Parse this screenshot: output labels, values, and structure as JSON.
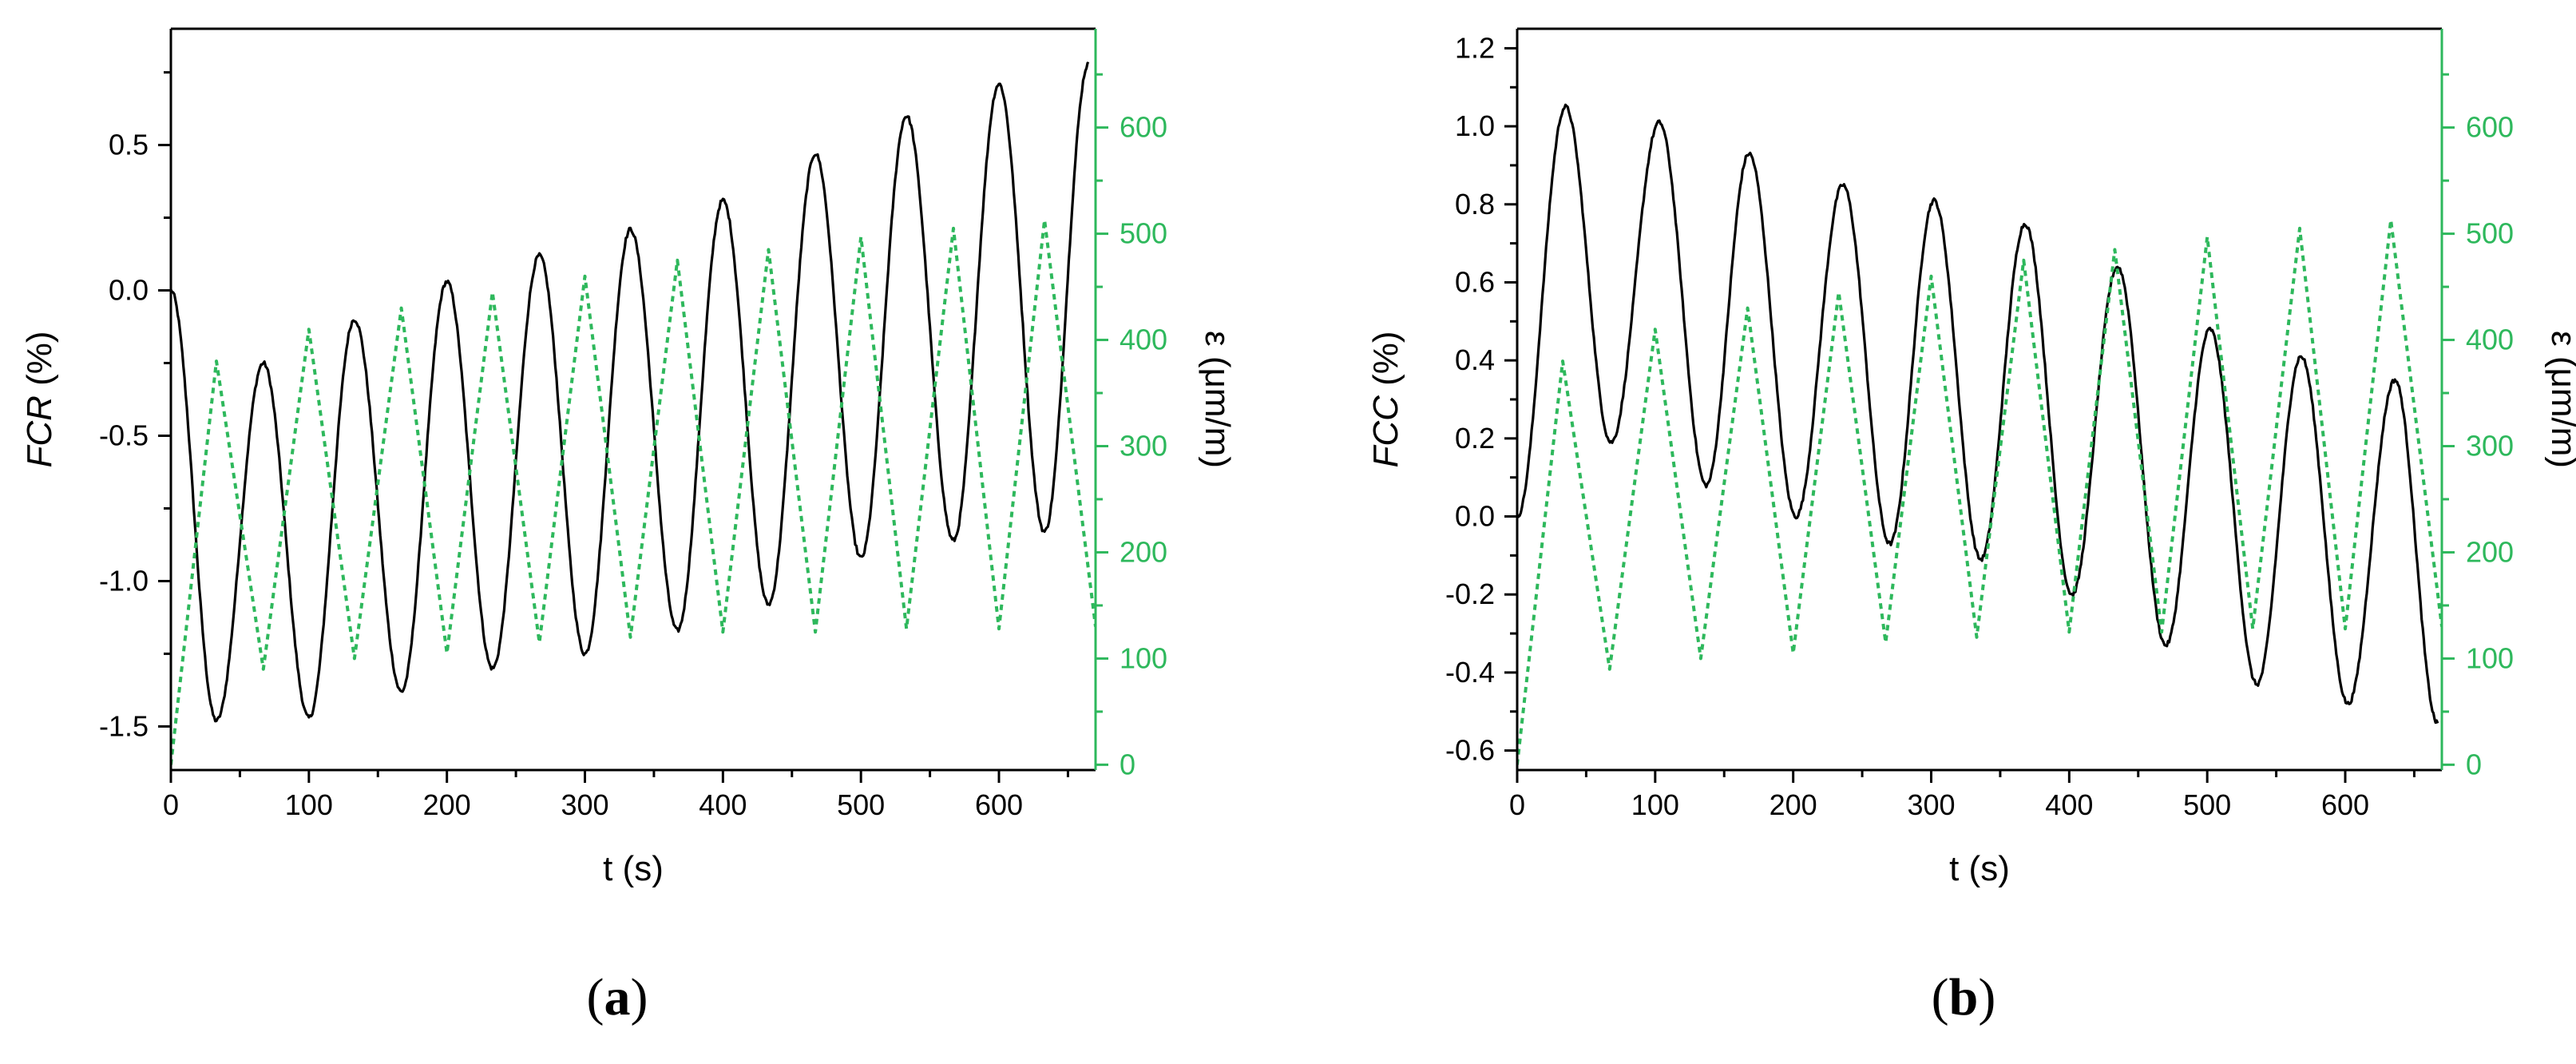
{
  "colors": {
    "primary_series": "#000000",
    "secondary_series": "#2eb85c",
    "axes": "#000000",
    "right_axis": "#2eb85c"
  },
  "chart_data": [
    {
      "type": "line",
      "panel_label": "(a)",
      "panel_letter": "a",
      "xlabel": "t (s)",
      "ylabel_italic": "FCR",
      "ylabel_unit": " (%)",
      "y2label": "ε (μm/m)",
      "xlim": [
        0,
        670
      ],
      "ylim": [
        -1.65,
        0.9
      ],
      "y2lim": [
        -5,
        693
      ],
      "xticks": [
        0,
        100,
        200,
        300,
        400,
        500,
        600
      ],
      "yticks": [
        -1.5,
        -1.0,
        -0.5,
        0.0,
        0.5
      ],
      "yticks_text": [
        "-1.5",
        "-1.0",
        "-0.5",
        "0.0",
        "0.5"
      ],
      "y2ticks": [
        0,
        100,
        200,
        300,
        400,
        500,
        600
      ],
      "series": [
        {
          "axis": "left",
          "style": "solid",
          "color": "#000000",
          "x": [
            0,
            33,
            67,
            100,
            133,
            167,
            200,
            233,
            267,
            300,
            333,
            367,
            400,
            433,
            467,
            500,
            533,
            567,
            600,
            633,
            665
          ],
          "values": [
            0.0,
            -1.48,
            -0.25,
            -1.47,
            -0.1,
            -1.38,
            0.03,
            -1.3,
            0.12,
            -1.25,
            0.21,
            -1.17,
            0.31,
            -1.08,
            0.47,
            -0.92,
            0.6,
            -0.86,
            0.71,
            -0.83,
            0.78
          ]
        },
        {
          "axis": "right",
          "style": "dotted",
          "color": "#2eb85c",
          "x": [
            0,
            33,
            67,
            100,
            133,
            167,
            200,
            233,
            267,
            300,
            333,
            367,
            400,
            433,
            467,
            500,
            533,
            567,
            600,
            633,
            670
          ],
          "values": [
            0,
            380,
            90,
            410,
            100,
            430,
            105,
            445,
            115,
            460,
            120,
            475,
            125,
            485,
            125,
            497,
            128,
            505,
            128,
            513,
            130
          ]
        }
      ]
    },
    {
      "type": "line",
      "panel_label": "(b)",
      "panel_letter": "b",
      "xlabel": "t (s)",
      "ylabel_italic": "FCC",
      "ylabel_unit": " (%)",
      "y2label": "ε (μm/m)",
      "xlim": [
        0,
        670
      ],
      "ylim": [
        -0.65,
        1.25
      ],
      "y2lim": [
        -5,
        693
      ],
      "xticks": [
        0,
        100,
        200,
        300,
        400,
        500,
        600
      ],
      "yticks": [
        -0.6,
        -0.4,
        -0.2,
        0.0,
        0.2,
        0.4,
        0.6,
        0.8,
        1.0,
        1.2
      ],
      "yticks_text": [
        "-0.6",
        "-0.4",
        "-0.2",
        "0.0",
        "0.2",
        "0.4",
        "0.6",
        "0.8",
        "1.0",
        "1.2"
      ],
      "y2ticks": [
        0,
        100,
        200,
        300,
        400,
        500,
        600
      ],
      "series": [
        {
          "axis": "left",
          "style": "solid",
          "color": "#000000",
          "x": [
            0,
            35,
            68,
            103,
            137,
            168,
            202,
            236,
            270,
            302,
            336,
            368,
            402,
            435,
            470,
            502,
            536,
            568,
            602,
            636,
            667
          ],
          "values": [
            0.0,
            1.05,
            0.19,
            1.01,
            0.08,
            0.93,
            0.0,
            0.85,
            -0.07,
            0.81,
            -0.11,
            0.75,
            -0.2,
            0.64,
            -0.33,
            0.48,
            -0.43,
            0.41,
            -0.48,
            0.35,
            -0.53
          ]
        },
        {
          "axis": "right",
          "style": "dotted",
          "color": "#2eb85c",
          "x": [
            0,
            33,
            67,
            100,
            133,
            167,
            200,
            233,
            267,
            300,
            333,
            367,
            400,
            433,
            467,
            500,
            533,
            567,
            600,
            633,
            670
          ],
          "values": [
            0,
            380,
            90,
            410,
            100,
            430,
            105,
            445,
            115,
            460,
            120,
            475,
            125,
            485,
            125,
            497,
            128,
            505,
            128,
            513,
            130
          ]
        }
      ]
    }
  ]
}
